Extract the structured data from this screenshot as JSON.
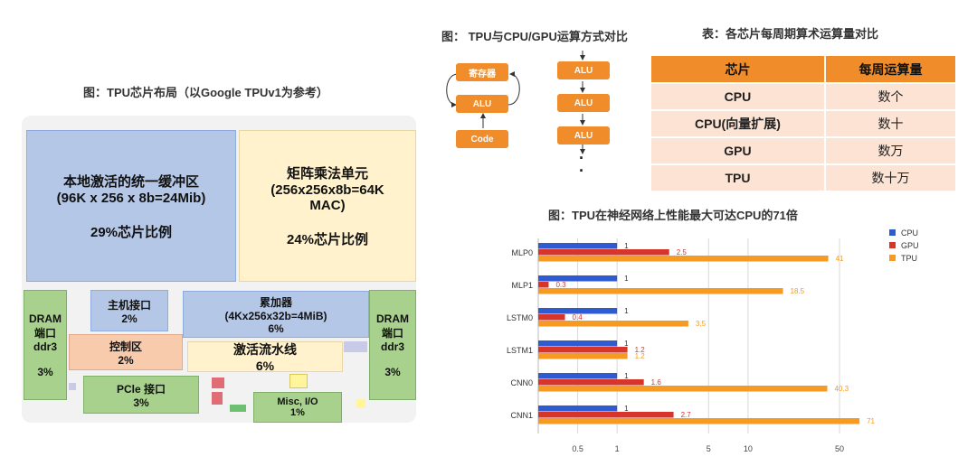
{
  "titles": {
    "floorplan": "图：TPU芯片布局（以Google TPUv1为参考）",
    "compute_mode": "图： TPU与CPU/GPU运算方式对比",
    "table": "表：各芯片每周期算术运算量对比",
    "chart": "图：TPU在神经网络上性能最大可达CPU的71倍"
  },
  "floorplan": {
    "buffer": {
      "name": "本地激活的统一缓冲区",
      "size": "(96K x 256 x 8b=24Mib)",
      "share": "29%芯片比例"
    },
    "mmu": {
      "name": "矩阵乘法单元",
      "size": "(256x256x8b=64K",
      "size2": "MAC)",
      "share": "24%芯片比例"
    },
    "host": {
      "name": "主机接口",
      "share": "2%"
    },
    "acc": {
      "name": "累加器",
      "size": "(4Kx256x32b=4MiB)",
      "share": "6%"
    },
    "ctrl": {
      "name": "控制区",
      "share": "2%"
    },
    "pipe": {
      "name": "激活流水线",
      "share": "6%"
    },
    "pcie": {
      "name": "PCle 接口",
      "share": "3%"
    },
    "misc": {
      "name": "Misc, I/O",
      "share": "1%"
    },
    "dram_left": {
      "l1": "DRAM",
      "l2": "端口",
      "l3": "ddr3",
      "share": "3%"
    },
    "dram_right": {
      "l1": "DRAM",
      "l2": "端口",
      "l3": "ddr3",
      "share": "3%"
    }
  },
  "compute_mode": {
    "left": {
      "register": "寄存器",
      "alu": "ALU",
      "code": "Code"
    },
    "right": {
      "alu": "ALU",
      "dots": "·"
    }
  },
  "table": {
    "headers": [
      "芯片",
      "每周运算量"
    ],
    "rows": [
      [
        "CPU",
        "数个"
      ],
      [
        "CPU(向量扩展)",
        "数十"
      ],
      [
        "GPU",
        "数万"
      ],
      [
        "TPU",
        "数十万"
      ]
    ]
  },
  "chart_data": {
    "type": "bar",
    "orientation": "horizontal",
    "title": "图：TPU在神经网络上性能最大可达CPU的71倍",
    "categories": [
      "MLP0",
      "MLP1",
      "LSTM0",
      "LSTM1",
      "CNN0",
      "CNN1"
    ],
    "series": [
      {
        "name": "CPU",
        "color": "#2f5bd0",
        "values": [
          1,
          1,
          1,
          1,
          1,
          1
        ]
      },
      {
        "name": "GPU",
        "color": "#d8352a",
        "values": [
          2.5,
          0.3,
          0.4,
          1.2,
          1.6,
          2.7
        ]
      },
      {
        "name": "TPU",
        "color": "#f59a23",
        "values": [
          41,
          18.5,
          3.5,
          1.2,
          40.3,
          71
        ]
      }
    ],
    "x_scale": "log",
    "x_ticks": [
      0.5,
      1,
      5,
      10,
      50
    ],
    "grid": true,
    "legend": "top-right"
  }
}
